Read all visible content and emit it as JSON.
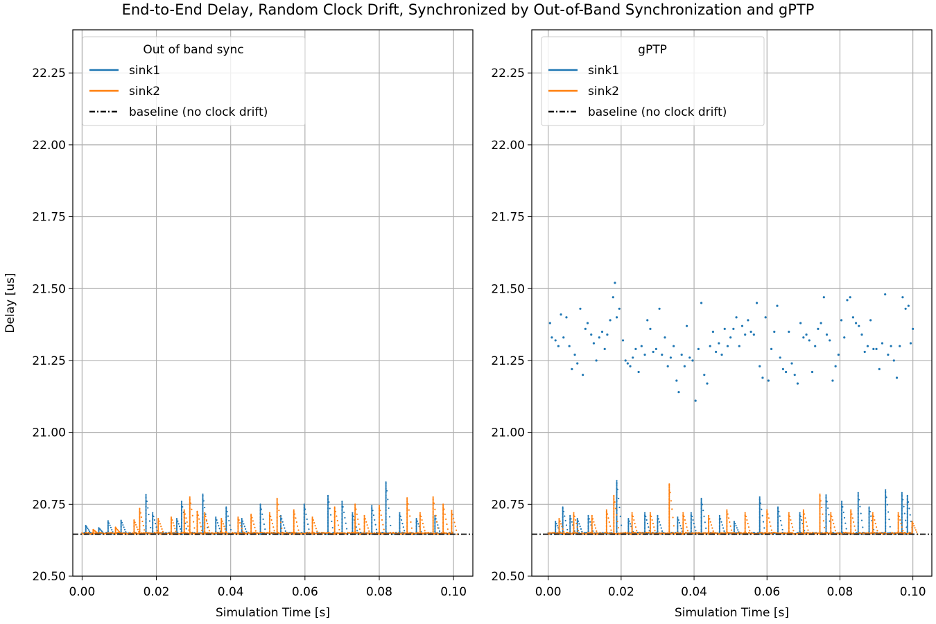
{
  "figure": {
    "title": "End-to-End Delay, Random Clock Drift, Synchronized by Out-of-Band Synchronization and gPTP"
  },
  "colors": {
    "sink1": "#1f77b4",
    "sink2": "#ff7f0e",
    "baseline": "#000000",
    "grid": "#b0b0b0"
  },
  "chart_data": [
    {
      "type": "scatter",
      "title": "",
      "legend_title": "Out of band sync",
      "legend_position": "upper-left",
      "xlabel": "Simulation Time [s]",
      "ylabel": "Delay [us]",
      "xlim": [
        -0.0025,
        0.1052
      ],
      "ylim": [
        20.5,
        22.4
      ],
      "xticks": [
        "0.00",
        "0.02",
        "0.04",
        "0.06",
        "0.08",
        "0.10"
      ],
      "yticks": [
        "20.50",
        "20.75",
        "21.00",
        "21.25",
        "21.50",
        "21.75",
        "22.00",
        "22.25"
      ],
      "grid": true,
      "baseline": {
        "name": "baseline (no clock drift)",
        "y": 20.646,
        "style": "dash-dot"
      },
      "series": [
        {
          "name": "sink1",
          "color": "#1f77b4",
          "base": 20.646,
          "spikes": [
            {
              "x": 0.001,
              "peak": 20.676
            },
            {
              "x": 0.0045,
              "peak": 20.668
            },
            {
              "x": 0.007,
              "peak": 20.692
            },
            {
              "x": 0.0105,
              "peak": 20.694
            },
            {
              "x": 0.0172,
              "peak": 20.783
            },
            {
              "x": 0.019,
              "peak": 20.72
            },
            {
              "x": 0.0255,
              "peak": 20.7
            },
            {
              "x": 0.0268,
              "peak": 20.76
            },
            {
              "x": 0.0325,
              "peak": 20.785
            },
            {
              "x": 0.036,
              "peak": 20.705
            },
            {
              "x": 0.0388,
              "peak": 20.74
            },
            {
              "x": 0.043,
              "peak": 20.7
            },
            {
              "x": 0.048,
              "peak": 20.75
            },
            {
              "x": 0.0535,
              "peak": 20.71
            },
            {
              "x": 0.0598,
              "peak": 20.75
            },
            {
              "x": 0.0662,
              "peak": 20.78
            },
            {
              "x": 0.07,
              "peak": 20.76
            },
            {
              "x": 0.0728,
              "peak": 20.72
            },
            {
              "x": 0.078,
              "peak": 20.745
            },
            {
              "x": 0.0818,
              "peak": 20.827
            },
            {
              "x": 0.0855,
              "peak": 20.72
            },
            {
              "x": 0.09,
              "peak": 20.7
            },
            {
              "x": 0.095,
              "peak": 20.71
            }
          ]
        },
        {
          "name": "sink2",
          "color": "#ff7f0e",
          "base": 20.646,
          "spikes": [
            {
              "x": 0.003,
              "peak": 20.662
            },
            {
              "x": 0.009,
              "peak": 20.67
            },
            {
              "x": 0.014,
              "peak": 20.695
            },
            {
              "x": 0.0155,
              "peak": 20.735
            },
            {
              "x": 0.0205,
              "peak": 20.7
            },
            {
              "x": 0.024,
              "peak": 20.705
            },
            {
              "x": 0.0275,
              "peak": 20.73
            },
            {
              "x": 0.029,
              "peak": 20.775
            },
            {
              "x": 0.031,
              "peak": 20.725
            },
            {
              "x": 0.033,
              "peak": 20.72
            },
            {
              "x": 0.0375,
              "peak": 20.7
            },
            {
              "x": 0.042,
              "peak": 20.705
            },
            {
              "x": 0.0455,
              "peak": 20.715
            },
            {
              "x": 0.0505,
              "peak": 20.72
            },
            {
              "x": 0.0525,
              "peak": 20.77
            },
            {
              "x": 0.057,
              "peak": 20.73
            },
            {
              "x": 0.062,
              "peak": 20.705
            },
            {
              "x": 0.068,
              "peak": 20.74
            },
            {
              "x": 0.0735,
              "peak": 20.75
            },
            {
              "x": 0.076,
              "peak": 20.71
            },
            {
              "x": 0.08,
              "peak": 20.745
            },
            {
              "x": 0.0875,
              "peak": 20.772
            },
            {
              "x": 0.091,
              "peak": 20.72
            },
            {
              "x": 0.0945,
              "peak": 20.775
            },
            {
              "x": 0.0972,
              "peak": 20.75
            },
            {
              "x": 0.0995,
              "peak": 20.728
            }
          ]
        }
      ]
    },
    {
      "type": "scatter",
      "title": "",
      "legend_title": "gPTP",
      "legend_position": "upper-left",
      "xlabel": "Simulation Time [s]",
      "ylabel": "",
      "xlim": [
        -0.0045,
        0.1052
      ],
      "ylim": [
        20.5,
        22.4
      ],
      "xticks": [
        "0.00",
        "0.02",
        "0.04",
        "0.06",
        "0.08",
        "0.10"
      ],
      "yticks": [
        "20.50",
        "20.75",
        "21.00",
        "21.25",
        "21.50",
        "21.75",
        "22.00",
        "22.25"
      ],
      "grid": true,
      "baseline": {
        "name": "baseline (no clock drift)",
        "y": 20.646,
        "style": "dash-dot"
      },
      "series": [
        {
          "name": "sink1",
          "color": "#1f77b4",
          "base": 20.646,
          "spikes": [
            {
              "x": 0.002,
              "peak": 20.69
            },
            {
              "x": 0.004,
              "peak": 20.74
            },
            {
              "x": 0.006,
              "peak": 20.71
            },
            {
              "x": 0.008,
              "peak": 20.7
            },
            {
              "x": 0.011,
              "peak": 20.71
            },
            {
              "x": 0.0188,
              "peak": 20.832
            },
            {
              "x": 0.022,
              "peak": 20.7
            },
            {
              "x": 0.0265,
              "peak": 20.72
            },
            {
              "x": 0.03,
              "peak": 20.71
            },
            {
              "x": 0.0355,
              "peak": 20.705
            },
            {
              "x": 0.0392,
              "peak": 20.72
            },
            {
              "x": 0.042,
              "peak": 20.77
            },
            {
              "x": 0.047,
              "peak": 20.71
            },
            {
              "x": 0.051,
              "peak": 20.69
            },
            {
              "x": 0.058,
              "peak": 20.775
            },
            {
              "x": 0.063,
              "peak": 20.74
            },
            {
              "x": 0.069,
              "peak": 20.72
            },
            {
              "x": 0.0762,
              "peak": 20.782
            },
            {
              "x": 0.0805,
              "peak": 20.76
            },
            {
              "x": 0.085,
              "peak": 20.79
            },
            {
              "x": 0.088,
              "peak": 20.74
            },
            {
              "x": 0.0925,
              "peak": 20.8
            },
            {
              "x": 0.097,
              "peak": 20.79
            },
            {
              "x": 0.0985,
              "peak": 20.78
            }
          ],
          "scatter": [
            [
              0.0005,
              21.38
            ],
            [
              0.001,
              21.33
            ],
            [
              0.002,
              21.32
            ],
            [
              0.0028,
              21.3
            ],
            [
              0.0035,
              21.41
            ],
            [
              0.0042,
              21.33
            ],
            [
              0.005,
              21.4
            ],
            [
              0.0058,
              21.3
            ],
            [
              0.0065,
              21.22
            ],
            [
              0.0073,
              21.27
            ],
            [
              0.008,
              21.24
            ],
            [
              0.0088,
              21.43
            ],
            [
              0.0095,
              21.2
            ],
            [
              0.0102,
              21.36
            ],
            [
              0.0108,
              21.38
            ],
            [
              0.0118,
              21.34
            ],
            [
              0.0125,
              21.31
            ],
            [
              0.0132,
              21.25
            ],
            [
              0.014,
              21.33
            ],
            [
              0.0148,
              21.35
            ],
            [
              0.0155,
              21.29
            ],
            [
              0.0162,
              21.34
            ],
            [
              0.017,
              21.39
            ],
            [
              0.0178,
              21.47
            ],
            [
              0.0183,
              21.52
            ],
            [
              0.0188,
              21.4
            ],
            [
              0.0195,
              21.43
            ],
            [
              0.0205,
              21.32
            ],
            [
              0.0212,
              21.25
            ],
            [
              0.0218,
              21.24
            ],
            [
              0.0225,
              21.23
            ],
            [
              0.0232,
              21.26
            ],
            [
              0.024,
              21.29
            ],
            [
              0.0248,
              21.21
            ],
            [
              0.0256,
              21.3
            ],
            [
              0.0265,
              21.27
            ],
            [
              0.0272,
              21.39
            ],
            [
              0.028,
              21.36
            ],
            [
              0.0288,
              21.28
            ],
            [
              0.0296,
              21.29
            ],
            [
              0.0305,
              21.43
            ],
            [
              0.0312,
              21.27
            ],
            [
              0.032,
              21.33
            ],
            [
              0.0328,
              21.23
            ],
            [
              0.0336,
              21.26
            ],
            [
              0.0344,
              21.3
            ],
            [
              0.0352,
              21.18
            ],
            [
              0.0358,
              21.14
            ],
            [
              0.0366,
              21.27
            ],
            [
              0.0374,
              21.23
            ],
            [
              0.038,
              21.37
            ],
            [
              0.0388,
              21.26
            ],
            [
              0.0396,
              21.25
            ],
            [
              0.0404,
              21.11
            ],
            [
              0.0412,
              21.29
            ],
            [
              0.042,
              21.45
            ],
            [
              0.0428,
              21.2
            ],
            [
              0.0436,
              21.17
            ],
            [
              0.0444,
              21.3
            ],
            [
              0.0452,
              21.35
            ],
            [
              0.046,
              21.28
            ],
            [
              0.0468,
              21.31
            ],
            [
              0.0476,
              21.27
            ],
            [
              0.0484,
              21.36
            ],
            [
              0.0492,
              21.3
            ],
            [
              0.05,
              21.33
            ],
            [
              0.0508,
              21.36
            ],
            [
              0.0516,
              21.4
            ],
            [
              0.0524,
              21.3
            ],
            [
              0.0532,
              21.37
            ],
            [
              0.054,
              21.34
            ],
            [
              0.0548,
              21.39
            ],
            [
              0.0556,
              21.35
            ],
            [
              0.0564,
              21.34
            ],
            [
              0.0572,
              21.45
            ],
            [
              0.058,
              21.23
            ],
            [
              0.0588,
              21.19
            ],
            [
              0.0596,
              21.4
            ],
            [
              0.0604,
              21.18
            ],
            [
              0.0612,
              21.29
            ],
            [
              0.062,
              21.35
            ],
            [
              0.0628,
              21.44
            ],
            [
              0.0636,
              21.26
            ],
            [
              0.0644,
              21.22
            ],
            [
              0.0652,
              21.21
            ],
            [
              0.066,
              21.35
            ],
            [
              0.0668,
              21.24
            ],
            [
              0.0676,
              21.2
            ],
            [
              0.0684,
              21.17
            ],
            [
              0.0692,
              21.38
            ],
            [
              0.07,
              21.33
            ],
            [
              0.0708,
              21.34
            ],
            [
              0.0716,
              21.32
            ],
            [
              0.0724,
              21.21
            ],
            [
              0.0732,
              21.3
            ],
            [
              0.074,
              21.36
            ],
            [
              0.0748,
              21.38
            ],
            [
              0.0756,
              21.47
            ],
            [
              0.0764,
              21.34
            ],
            [
              0.0772,
              21.32
            ],
            [
              0.078,
              21.18
            ],
            [
              0.0788,
              21.23
            ],
            [
              0.0796,
              21.27
            ],
            [
              0.0804,
              21.39
            ],
            [
              0.0812,
              21.33
            ],
            [
              0.082,
              21.46
            ],
            [
              0.0828,
              21.47
            ],
            [
              0.0836,
              21.4
            ],
            [
              0.0844,
              21.38
            ],
            [
              0.0852,
              21.37
            ],
            [
              0.086,
              21.34
            ],
            [
              0.0868,
              21.28
            ],
            [
              0.0876,
              21.3
            ],
            [
              0.0884,
              21.39
            ],
            [
              0.0892,
              21.29
            ],
            [
              0.09,
              21.29
            ],
            [
              0.0908,
              21.22
            ],
            [
              0.0916,
              21.31
            ],
            [
              0.0924,
              21.48
            ],
            [
              0.0932,
              21.27
            ],
            [
              0.094,
              21.3
            ],
            [
              0.0948,
              21.25
            ],
            [
              0.0956,
              21.19
            ],
            [
              0.0964,
              21.3
            ],
            [
              0.0972,
              21.47
            ],
            [
              0.098,
              21.43
            ],
            [
              0.0988,
              21.44
            ],
            [
              0.0994,
              21.31
            ],
            [
              0.1,
              21.36
            ]
          ]
        },
        {
          "name": "sink2",
          "color": "#ff7f0e",
          "base": 20.646,
          "spikes": [
            {
              "x": 0.003,
              "peak": 20.7
            },
            {
              "x": 0.007,
              "peak": 20.72
            },
            {
              "x": 0.012,
              "peak": 20.71
            },
            {
              "x": 0.016,
              "peak": 20.73
            },
            {
              "x": 0.018,
              "peak": 20.78
            },
            {
              "x": 0.023,
              "peak": 20.72
            },
            {
              "x": 0.028,
              "peak": 20.72
            },
            {
              "x": 0.0332,
              "peak": 20.82
            },
            {
              "x": 0.037,
              "peak": 20.72
            },
            {
              "x": 0.044,
              "peak": 20.71
            },
            {
              "x": 0.049,
              "peak": 20.73
            },
            {
              "x": 0.054,
              "peak": 20.72
            },
            {
              "x": 0.06,
              "peak": 20.73
            },
            {
              "x": 0.066,
              "peak": 20.72
            },
            {
              "x": 0.07,
              "peak": 20.73
            },
            {
              "x": 0.0745,
              "peak": 20.785
            },
            {
              "x": 0.0775,
              "peak": 20.72
            },
            {
              "x": 0.083,
              "peak": 20.73
            },
            {
              "x": 0.089,
              "peak": 20.72
            },
            {
              "x": 0.096,
              "peak": 20.72
            },
            {
              "x": 0.0998,
              "peak": 20.69
            }
          ]
        }
      ]
    }
  ]
}
